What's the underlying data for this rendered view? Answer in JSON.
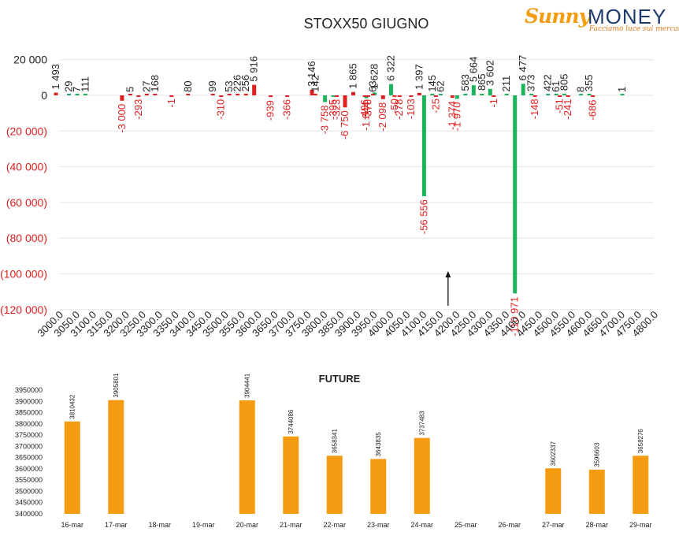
{
  "logo": {
    "brand_a": "Sunny",
    "brand_b": "MONEY",
    "tagline": "Facciamo luce sui mercati"
  },
  "colors": {
    "positive": "#1db35c",
    "negative": "#e02020",
    "future_bar": "#f39c12",
    "neg_label": "#e02020",
    "text": "#222222",
    "gridline": "#e6e6e6"
  },
  "chart_data": [
    {
      "type": "bar",
      "title": "STOXX50 GIUGNO",
      "y_ticks": [
        20000,
        0,
        -20000,
        -40000,
        -60000,
        -80000,
        -100000,
        -120000
      ],
      "y_tick_labels": [
        "20 000",
        "0",
        "(20 000)",
        "(40 000)",
        "(60 000)",
        "(80 000)",
        "(100 000)",
        "(120 000)"
      ],
      "ylim": [
        -120000,
        20000
      ],
      "x_tick_labels": [
        "3000.0",
        "3050.0",
        "3100.0",
        "3150.0",
        "3200.0",
        "3250.0",
        "3300.0",
        "3350.0",
        "3400.0",
        "3450.0",
        "3500.0",
        "3550.0",
        "3600.0",
        "3650.0",
        "3700.0",
        "3750.0",
        "3800.0",
        "3850.0",
        "3900.0",
        "3950.0",
        "4000.0",
        "4050.0",
        "4100.0",
        "4150.0",
        "4200.0",
        "4250.0",
        "4300.0",
        "4350.0",
        "4400.0",
        "4450.0",
        "4500.0",
        "4550.0",
        "4600.0",
        "4650.0",
        "4700.0",
        "4750.0",
        "4800.0"
      ],
      "series": [
        {
          "name": "calls",
          "color": "green",
          "points": [
            {
              "strike": 3025,
              "value": 29,
              "label": "29"
            },
            {
              "strike": 3050,
              "value": 7,
              "label": "7"
            },
            {
              "strike": 3075,
              "value": 111,
              "label": "111"
            },
            {
              "strike": 3800,
              "value": -3758,
              "label": "-3 758"
            },
            {
              "strike": 3825,
              "value": -395,
              "label": "-395"
            },
            {
              "strike": 3925,
              "value": -1644,
              "label": "-1 644"
            },
            {
              "strike": 3950,
              "value": 1628,
              "label": "1 628"
            },
            {
              "strike": 4000,
              "value": 6322,
              "label": "6 322"
            },
            {
              "strike": 4100,
              "value": -56556,
              "label": "-56 556"
            },
            {
              "strike": 4125,
              "value": 145,
              "label": "145"
            },
            {
              "strike": 4150,
              "value": 62,
              "label": "62"
            },
            {
              "strike": 4200,
              "value": -1970,
              "label": "-1 970"
            },
            {
              "strike": 4225,
              "value": 583,
              "label": "583"
            },
            {
              "strike": 4250,
              "value": 5664,
              "label": "5 664"
            },
            {
              "strike": 4275,
              "value": 865,
              "label": "865"
            },
            {
              "strike": 4300,
              "value": 3602,
              "label": "3 602"
            },
            {
              "strike": 4350,
              "value": 211,
              "label": "211"
            },
            {
              "strike": 4375,
              "value": -110971,
              "label": "-110 971"
            },
            {
              "strike": 4400,
              "value": 6477,
              "label": "6 477"
            },
            {
              "strike": 4425,
              "value": 373,
              "label": "373"
            },
            {
              "strike": 4475,
              "value": 422,
              "label": "422"
            },
            {
              "strike": 4500,
              "value": 61,
              "label": "61"
            },
            {
              "strike": 4525,
              "value": 805,
              "label": "805"
            },
            {
              "strike": 4575,
              "value": 8,
              "label": "8"
            },
            {
              "strike": 4600,
              "value": 355,
              "label": "355"
            },
            {
              "strike": 4700,
              "value": 1,
              "label": "1"
            }
          ]
        },
        {
          "name": "puts",
          "color": "red",
          "points": [
            {
              "strike": 3000,
              "value": 1493,
              "label": "1 493"
            },
            {
              "strike": 3200,
              "value": -3000,
              "label": "-3 000"
            },
            {
              "strike": 3225,
              "value": 5,
              "label": "5"
            },
            {
              "strike": 3250,
              "value": -293,
              "label": "-293"
            },
            {
              "strike": 3275,
              "value": 27,
              "label": "27"
            },
            {
              "strike": 3300,
              "value": 168,
              "label": "168"
            },
            {
              "strike": 3350,
              "value": -1,
              "label": "-1"
            },
            {
              "strike": 3400,
              "value": 80,
              "label": "80"
            },
            {
              "strike": 3475,
              "value": 99,
              "label": "99"
            },
            {
              "strike": 3500,
              "value": -310,
              "label": "-310"
            },
            {
              "strike": 3525,
              "value": 53,
              "label": "53"
            },
            {
              "strike": 3550,
              "value": 226,
              "label": "226"
            },
            {
              "strike": 3575,
              "value": 256,
              "label": "256"
            },
            {
              "strike": 3600,
              "value": 5916,
              "label": "5 916"
            },
            {
              "strike": 3650,
              "value": -939,
              "label": "-939"
            },
            {
              "strike": 3700,
              "value": -366,
              "label": "-366"
            },
            {
              "strike": 3775,
              "value": 3146,
              "label": "3 146"
            },
            {
              "strike": 3785,
              "value": 142,
              "label": "142"
            },
            {
              "strike": 3850,
              "value": -323,
              "label": "-323"
            },
            {
              "strike": 3875,
              "value": -6750,
              "label": "-6 750"
            },
            {
              "strike": 3900,
              "value": 1865,
              "label": "1 865"
            },
            {
              "strike": 3935,
              "value": -496,
              "label": "-496"
            },
            {
              "strike": 3945,
              "value": -370,
              "label": "-370"
            },
            {
              "strike": 3960,
              "value": 63,
              "label": "63"
            },
            {
              "strike": 3990,
              "value": -2098,
              "label": "-2 098"
            },
            {
              "strike": 4025,
              "value": -50,
              "label": "-50"
            },
            {
              "strike": 4040,
              "value": -278,
              "label": "-278"
            },
            {
              "strike": 4075,
              "value": -103,
              "label": "-103"
            },
            {
              "strike": 4100,
              "value": 1397,
              "label": "1 397"
            },
            {
              "strike": 4150,
              "value": -25,
              "label": "-25"
            },
            {
              "strike": 4200,
              "value": -1374,
              "label": "-1 374"
            },
            {
              "strike": 4325,
              "value": -1,
              "label": "-1"
            },
            {
              "strike": 4450,
              "value": -148,
              "label": "-148"
            },
            {
              "strike": 4525,
              "value": -51,
              "label": "-51"
            },
            {
              "strike": 4550,
              "value": -241,
              "label": "-241"
            },
            {
              "strike": 4625,
              "value": -686,
              "label": "-686"
            }
          ]
        }
      ],
      "annotation": {
        "type": "arrow",
        "strike": 4175,
        "value_from": -120000,
        "value_to": -100000
      }
    },
    {
      "type": "bar",
      "title": "FUTURE",
      "categories": [
        "16-mar",
        "17-mar",
        "18-mar",
        "19-mar",
        "20-mar",
        "21-mar",
        "22-mar",
        "23-mar",
        "24-mar",
        "25-mar",
        "26-mar",
        "27-mar",
        "28-mar",
        "29-mar"
      ],
      "values": [
        3810432,
        3905801,
        null,
        null,
        3904441,
        3744086,
        3658341,
        3643835,
        3737483,
        null,
        null,
        3602337,
        3596603,
        3658276
      ],
      "ylim": [
        3400000,
        3950000
      ],
      "y_ticks": [
        3400000,
        3450000,
        3500000,
        3550000,
        3600000,
        3650000,
        3700000,
        3750000,
        3800000,
        3850000,
        3900000,
        3950000
      ],
      "y_tick_labels": [
        "3400000",
        "3450000",
        "3500000",
        "3550000",
        "3600000",
        "3650000",
        "3700000",
        "3750000",
        "3800000",
        "3850000",
        "3900000",
        "3950000"
      ]
    }
  ]
}
